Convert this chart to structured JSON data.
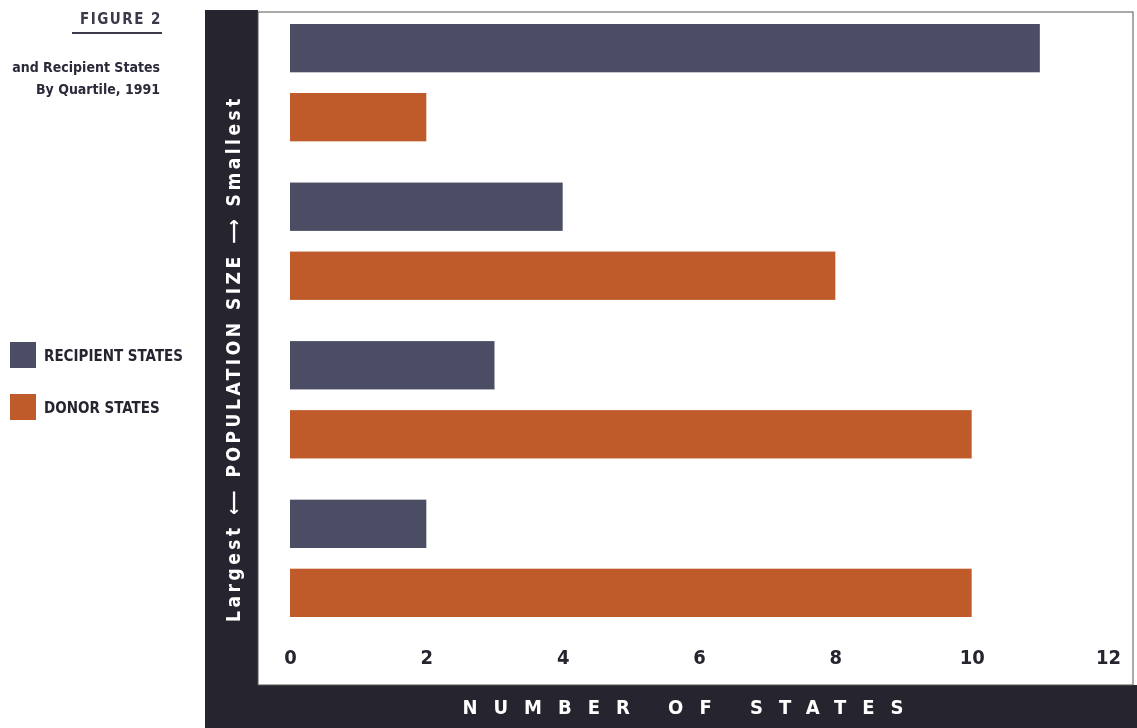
{
  "chart_data": {
    "type": "bar",
    "orientation": "horizontal",
    "title": "FIGURE 2",
    "subtitle": "and Recipient States\nBy Quartile, 1991",
    "xlabel": "NUMBER OF STATES",
    "ylabel": "Largest ⟵ POPULATION SIZE ⟶ Smallest",
    "categories": [
      null,
      null,
      null,
      null
    ],
    "series": [
      {
        "name": "RECIPIENT STATES",
        "color": "#4a4d63",
        "values": [
          11,
          4,
          3,
          2
        ]
      },
      {
        "name": "DONOR STATES",
        "color": "#bf5a2a",
        "values": [
          2,
          8,
          10,
          10
        ]
      }
    ],
    "xlim": [
      0,
      12
    ],
    "xticks": [
      0,
      2,
      4,
      6,
      8,
      10,
      12
    ],
    "grid": false,
    "legend": "left"
  }
}
